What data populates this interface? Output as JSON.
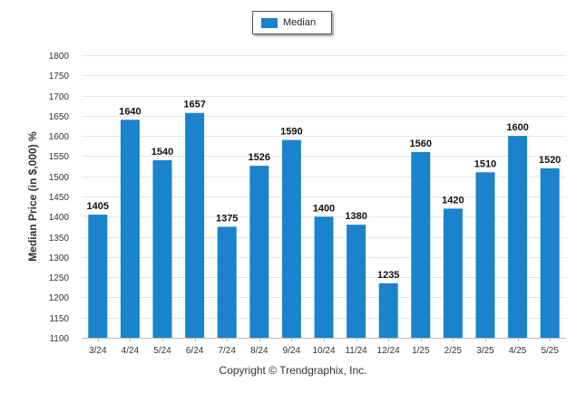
{
  "chart_data": {
    "type": "bar",
    "categories": [
      "3/24",
      "4/24",
      "5/24",
      "6/24",
      "7/24",
      "8/24",
      "9/24",
      "10/24",
      "11/24",
      "12/24",
      "1/25",
      "2/25",
      "3/25",
      "4/25",
      "5/25"
    ],
    "series": [
      {
        "name": "Median",
        "values": [
          1405,
          1640,
          1540,
          1657,
          1375,
          1526,
          1590,
          1400,
          1380,
          1235,
          1560,
          1420,
          1510,
          1600,
          1520
        ]
      }
    ],
    "ylabel": "Median Price (in $,000) %",
    "ylim": [
      1100,
      1800
    ],
    "yticks": [
      1100,
      1150,
      1200,
      1250,
      1300,
      1350,
      1400,
      1450,
      1500,
      1550,
      1600,
      1650,
      1700,
      1750,
      1800
    ],
    "grid": true,
    "legend_position": "top-center",
    "bar_color": "#1a83cc",
    "grid_color": "#e6e6e6"
  },
  "legend": {
    "label": "Median"
  },
  "footer": {
    "copyright": "Copyright © Trendgraphix, Inc."
  }
}
